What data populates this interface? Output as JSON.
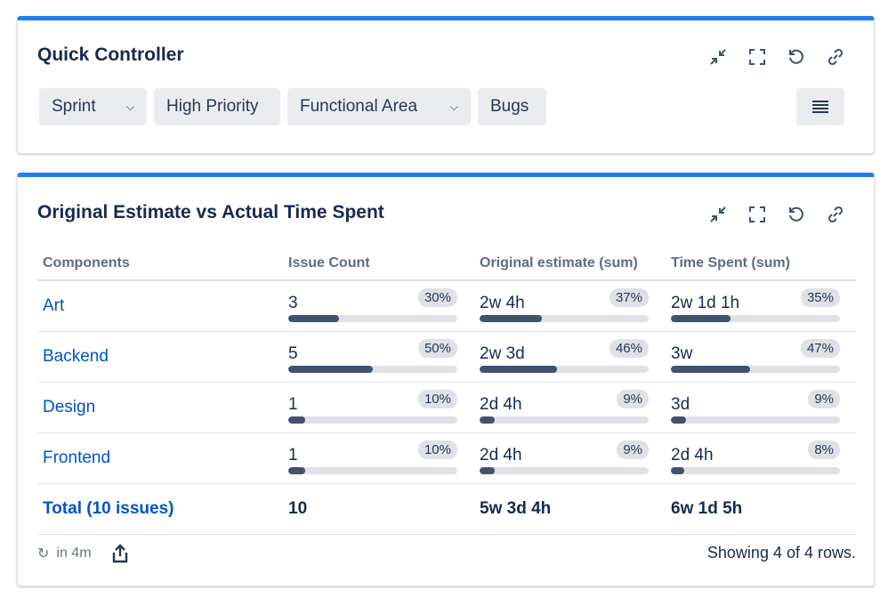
{
  "quick_controller": {
    "title": "Quick Controller",
    "filters": [
      {
        "label": "Sprint",
        "dropdown": true
      },
      {
        "label": "High Priority",
        "dropdown": false
      },
      {
        "label": "Functional Area",
        "dropdown": true
      },
      {
        "label": "Bugs",
        "dropdown": false
      }
    ],
    "menu_icon": "hamburger-icon"
  },
  "report": {
    "title": "Original Estimate vs Actual Time Spent",
    "columns": [
      "Components",
      "Issue Count",
      "Original estimate (sum)",
      "Time Spent (sum)"
    ],
    "rows": [
      {
        "component": "Art",
        "count": "3",
        "count_pct": "30%",
        "est": "2w 4h",
        "est_pct": "37%",
        "spent": "2w 1d 1h",
        "spent_pct": "35%"
      },
      {
        "component": "Backend",
        "count": "5",
        "count_pct": "50%",
        "est": "2w 3d",
        "est_pct": "46%",
        "spent": "3w",
        "spent_pct": "47%"
      },
      {
        "component": "Design",
        "count": "1",
        "count_pct": "10%",
        "est": "2d 4h",
        "est_pct": "9%",
        "spent": "3d",
        "spent_pct": "9%"
      },
      {
        "component": "Frontend",
        "count": "1",
        "count_pct": "10%",
        "est": "2d 4h",
        "est_pct": "9%",
        "spent": "2d 4h",
        "spent_pct": "8%"
      }
    ],
    "total": {
      "label": "Total (10 issues)",
      "count": "10",
      "est": "5w 3d 4h",
      "spent": "6w 1d 5h"
    },
    "refresh": "in 4m",
    "showing": "Showing 4 of 4 rows."
  },
  "colors": {
    "accent": "#1f7ff0",
    "link": "#0052cc",
    "bar": "#42526e"
  }
}
